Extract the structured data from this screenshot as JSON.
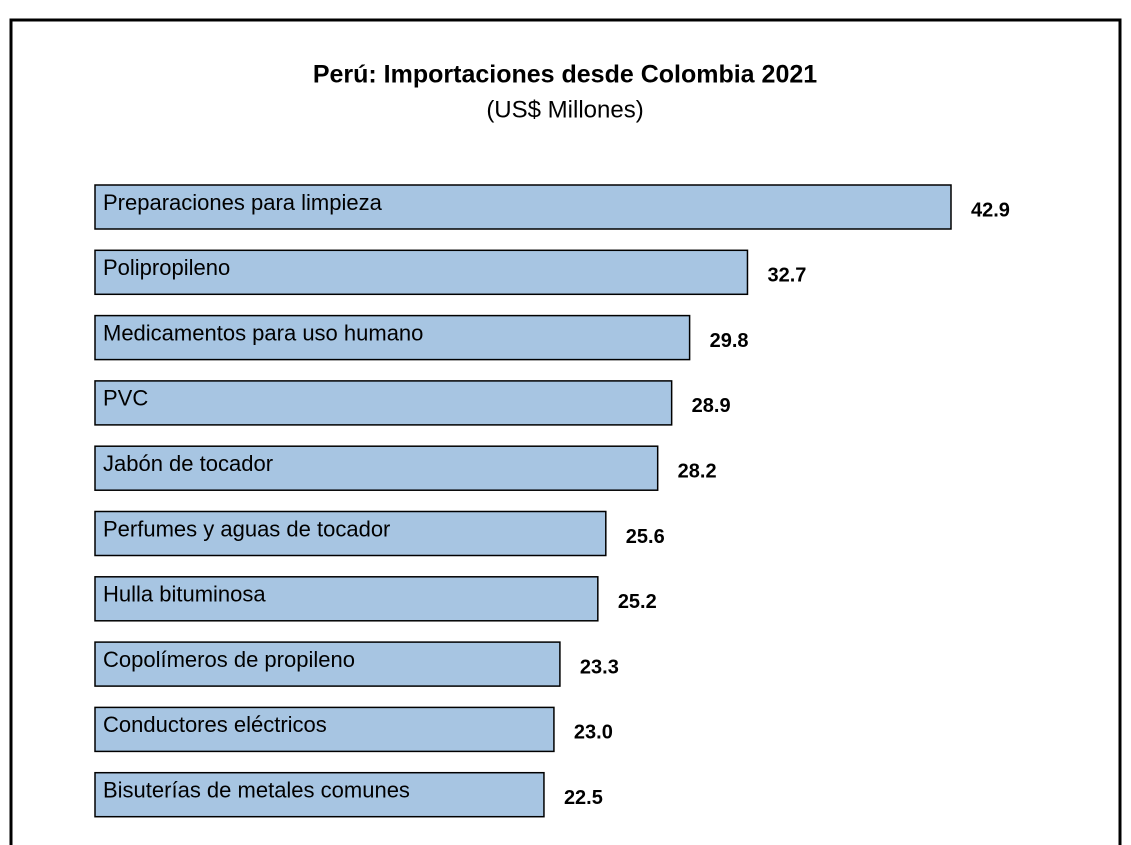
{
  "chart_data": {
    "type": "bar",
    "orientation": "horizontal",
    "title": "Perú: Importaciones desde Colombia 2021",
    "subtitle": "(US$ Millones)",
    "categories": [
      "Preparaciones para limpieza",
      "Polipropileno",
      "Medicamentos para uso humano",
      "PVC",
      "Jabón de tocador",
      "Perfumes y aguas de tocador",
      "Hulla bituminosa",
      "Copolímeros de propileno",
      "Conductores eléctricos",
      "Bisuterías de metales comunes"
    ],
    "values": [
      42.9,
      32.7,
      29.8,
      28.9,
      28.2,
      25.6,
      25.2,
      23.3,
      23.0,
      22.5
    ],
    "value_labels": [
      "42.9",
      "32.7",
      "29.8",
      "28.9",
      "28.2",
      "25.6",
      "25.2",
      "23.3",
      "23.0",
      "22.5"
    ],
    "color": "#a7c5e2"
  }
}
